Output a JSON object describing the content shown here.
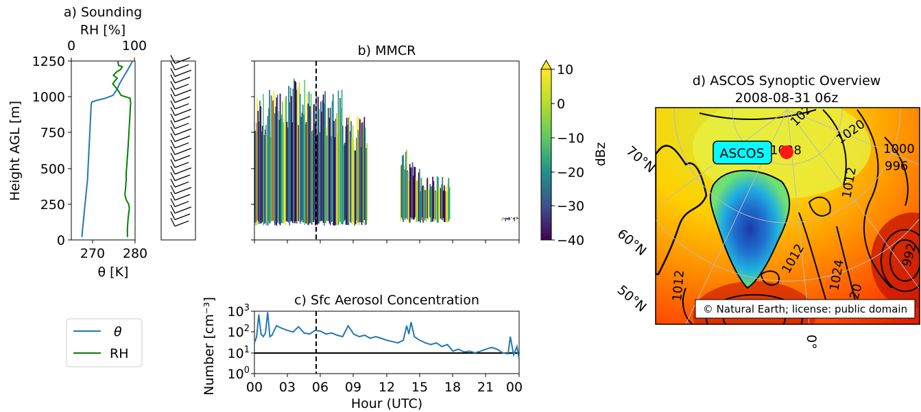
{
  "panels": {
    "sounding": {
      "title": "a) Sounding",
      "top_axis_label": "RH [%]",
      "top_ticks": [
        "0",
        "100"
      ],
      "ylabel": "Height AGL [m]",
      "yticks": [
        "0",
        "250",
        "500",
        "750",
        "1000",
        "1250"
      ],
      "xticks": [
        "270",
        "280"
      ],
      "xlabel": "θ [K]",
      "legend": [
        {
          "label": "θ",
          "color": "#1f77b4"
        },
        {
          "label": "RH",
          "color": "#008000"
        }
      ]
    },
    "mmcr": {
      "title": "b) MMCR",
      "colorbar_label": "dBz",
      "colorbar_ticks": [
        "10",
        "0",
        "−10",
        "−20",
        "−30",
        "−40"
      ]
    },
    "aerosol": {
      "title": "c) Sfc Aerosol Concentration",
      "ylabel": "Number [cm⁻³]",
      "xlabel": "Hour (UTC)",
      "xticks": [
        "00",
        "03",
        "06",
        "09",
        "12",
        "15",
        "18",
        "21",
        "00"
      ],
      "yticks_exp": [
        "0",
        "1",
        "2",
        "3"
      ]
    },
    "synoptic": {
      "title_line1": "d) ASCOS Synoptic Overview",
      "title_line2": "2008-08-31 06z",
      "marker_label": "ASCOS",
      "lat_labels": [
        "70°N",
        "60°N",
        "50°N"
      ],
      "lon_label": "0°",
      "credit": "© Natural Earth; license: public domain",
      "contour_labels": [
        "1028",
        "1020",
        "1024",
        "1012",
        "1000",
        "996",
        "992",
        "1024",
        "1012",
        "1012",
        "1020"
      ]
    }
  },
  "chart_data": [
    {
      "type": "line",
      "title": "a) Sounding",
      "ylabel": "Height AGL [m]",
      "ylim": [
        0,
        1250
      ],
      "series": [
        {
          "name": "θ",
          "axis": "bottom",
          "xlim": [
            265,
            280
          ],
          "color": "#1f77b4",
          "points": [
            [
              267.5,
              20
            ],
            [
              267.6,
              60
            ],
            [
              267.8,
              120
            ],
            [
              268.0,
              180
            ],
            [
              268.2,
              240
            ],
            [
              268.4,
              300
            ],
            [
              268.6,
              360
            ],
            [
              268.8,
              420
            ],
            [
              268.9,
              480
            ],
            [
              269.0,
              540
            ],
            [
              269.1,
              600
            ],
            [
              269.2,
              660
            ],
            [
              269.3,
              720
            ],
            [
              269.4,
              780
            ],
            [
              269.5,
              840
            ],
            [
              269.6,
              900
            ],
            [
              269.7,
              950
            ],
            [
              269.9,
              965
            ],
            [
              271.0,
              975
            ],
            [
              273.0,
              990
            ],
            [
              274.8,
              1010
            ],
            [
              275.7,
              1050
            ],
            [
              276.5,
              1100
            ],
            [
              277.5,
              1150
            ],
            [
              278.5,
              1200
            ],
            [
              279.4,
              1250
            ]
          ]
        },
        {
          "name": "RH",
          "axis": "top",
          "xlim": [
            0,
            100
          ],
          "color": "#008000",
          "points": [
            [
              88,
              20
            ],
            [
              88,
              80
            ],
            [
              89,
              150
            ],
            [
              91,
              220
            ],
            [
              90,
              250
            ],
            [
              86,
              280
            ],
            [
              84,
              320
            ],
            [
              85,
              360
            ],
            [
              86,
              420
            ],
            [
              86,
              470
            ],
            [
              87,
              520
            ],
            [
              88,
              580
            ],
            [
              89,
              650
            ],
            [
              90,
              720
            ],
            [
              91,
              800
            ],
            [
              92,
              880
            ],
            [
              93,
              960
            ],
            [
              92,
              990
            ],
            [
              78,
              1010
            ],
            [
              74,
              1040
            ],
            [
              69,
              1070
            ],
            [
              65,
              1090
            ],
            [
              68,
              1110
            ],
            [
              72,
              1130
            ],
            [
              66,
              1150
            ],
            [
              70,
              1170
            ],
            [
              77,
              1190
            ],
            [
              80,
              1210
            ],
            [
              74,
              1220
            ],
            [
              73,
              1250
            ]
          ]
        }
      ]
    },
    {
      "type": "heatmap",
      "title": "b) MMCR",
      "x": "hour (UTC) 0–24",
      "ylim": [
        0,
        1250
      ],
      "colorbar_range": [
        -40,
        10
      ],
      "colorbar_label": "dBz",
      "colormap": "viridis",
      "marker_line_hour": 5.6,
      "echo_regions": [
        {
          "hour_start": 0.0,
          "hour_end": 0.3,
          "height_bottom": 100,
          "height_top": 900
        },
        {
          "hour_start": 0.2,
          "hour_end": 2.5,
          "height_bottom": 100,
          "height_top": 1050
        },
        {
          "hour_start": 2.5,
          "hour_end": 5.0,
          "height_bottom": 100,
          "height_top": 1150
        },
        {
          "hour_start": 5.0,
          "hour_end": 8.0,
          "height_bottom": 100,
          "height_top": 1050
        },
        {
          "hour_start": 8.0,
          "hour_end": 10.2,
          "height_bottom": 100,
          "height_top": 900
        },
        {
          "hour_start": 13.2,
          "hour_end": 13.8,
          "height_bottom": 120,
          "height_top": 650
        },
        {
          "hour_start": 13.8,
          "hour_end": 15.0,
          "height_bottom": 120,
          "height_top": 550
        },
        {
          "hour_start": 15.0,
          "hour_end": 17.7,
          "height_bottom": 120,
          "height_top": 450
        },
        {
          "hour_start": 22.4,
          "hour_end": 24.0,
          "height_bottom": 130,
          "height_top": 160
        }
      ]
    },
    {
      "type": "line",
      "title": "c) Sfc Aerosol Concentration",
      "xlabel": "Hour (UTC)",
      "ylabel": "Number [cm⁻³]",
      "yscale": "log",
      "ylim": [
        1,
        1000
      ],
      "xlim": [
        0,
        24
      ],
      "threshold_value": 10,
      "marker_line_hour": 5.6,
      "series": [
        {
          "color": "#1f77b4",
          "x": [
            0,
            0.2,
            0.4,
            0.6,
            0.8,
            1.0,
            1.2,
            1.4,
            1.6,
            1.8,
            2.0,
            2.5,
            3.0,
            3.5,
            4.0,
            4.5,
            5.0,
            5.5,
            6.0,
            6.5,
            7.0,
            7.5,
            8.0,
            8.5,
            9.0,
            9.5,
            10.0,
            10.5,
            11.0,
            11.5,
            12.0,
            12.5,
            13.0,
            13.5,
            13.8,
            14.0,
            14.2,
            14.5,
            15.0,
            15.5,
            16.0,
            16.5,
            17.0,
            17.5,
            18.0,
            18.5,
            19.0,
            19.5,
            20.0,
            20.5,
            21.0,
            21.5,
            22.0,
            22.5,
            23.0,
            23.2,
            23.5,
            23.8,
            24.0
          ],
          "y": [
            30,
            60,
            700,
            80,
            60,
            90,
            900,
            60,
            70,
            120,
            200,
            150,
            120,
            100,
            180,
            90,
            80,
            120,
            110,
            80,
            90,
            70,
            60,
            200,
            80,
            60,
            70,
            50,
            60,
            50,
            40,
            35,
            30,
            40,
            200,
            80,
            300,
            60,
            40,
            30,
            25,
            30,
            20,
            25,
            12,
            15,
            11,
            12,
            10,
            12,
            15,
            18,
            15,
            10,
            9,
            60,
            8,
            20,
            5
          ]
        }
      ]
    },
    {
      "type": "map",
      "title": "d) ASCOS Synoptic Overview 2008-08-31 06z",
      "marker": {
        "label": "ASCOS",
        "color": "#ff0000"
      }
    }
  ]
}
